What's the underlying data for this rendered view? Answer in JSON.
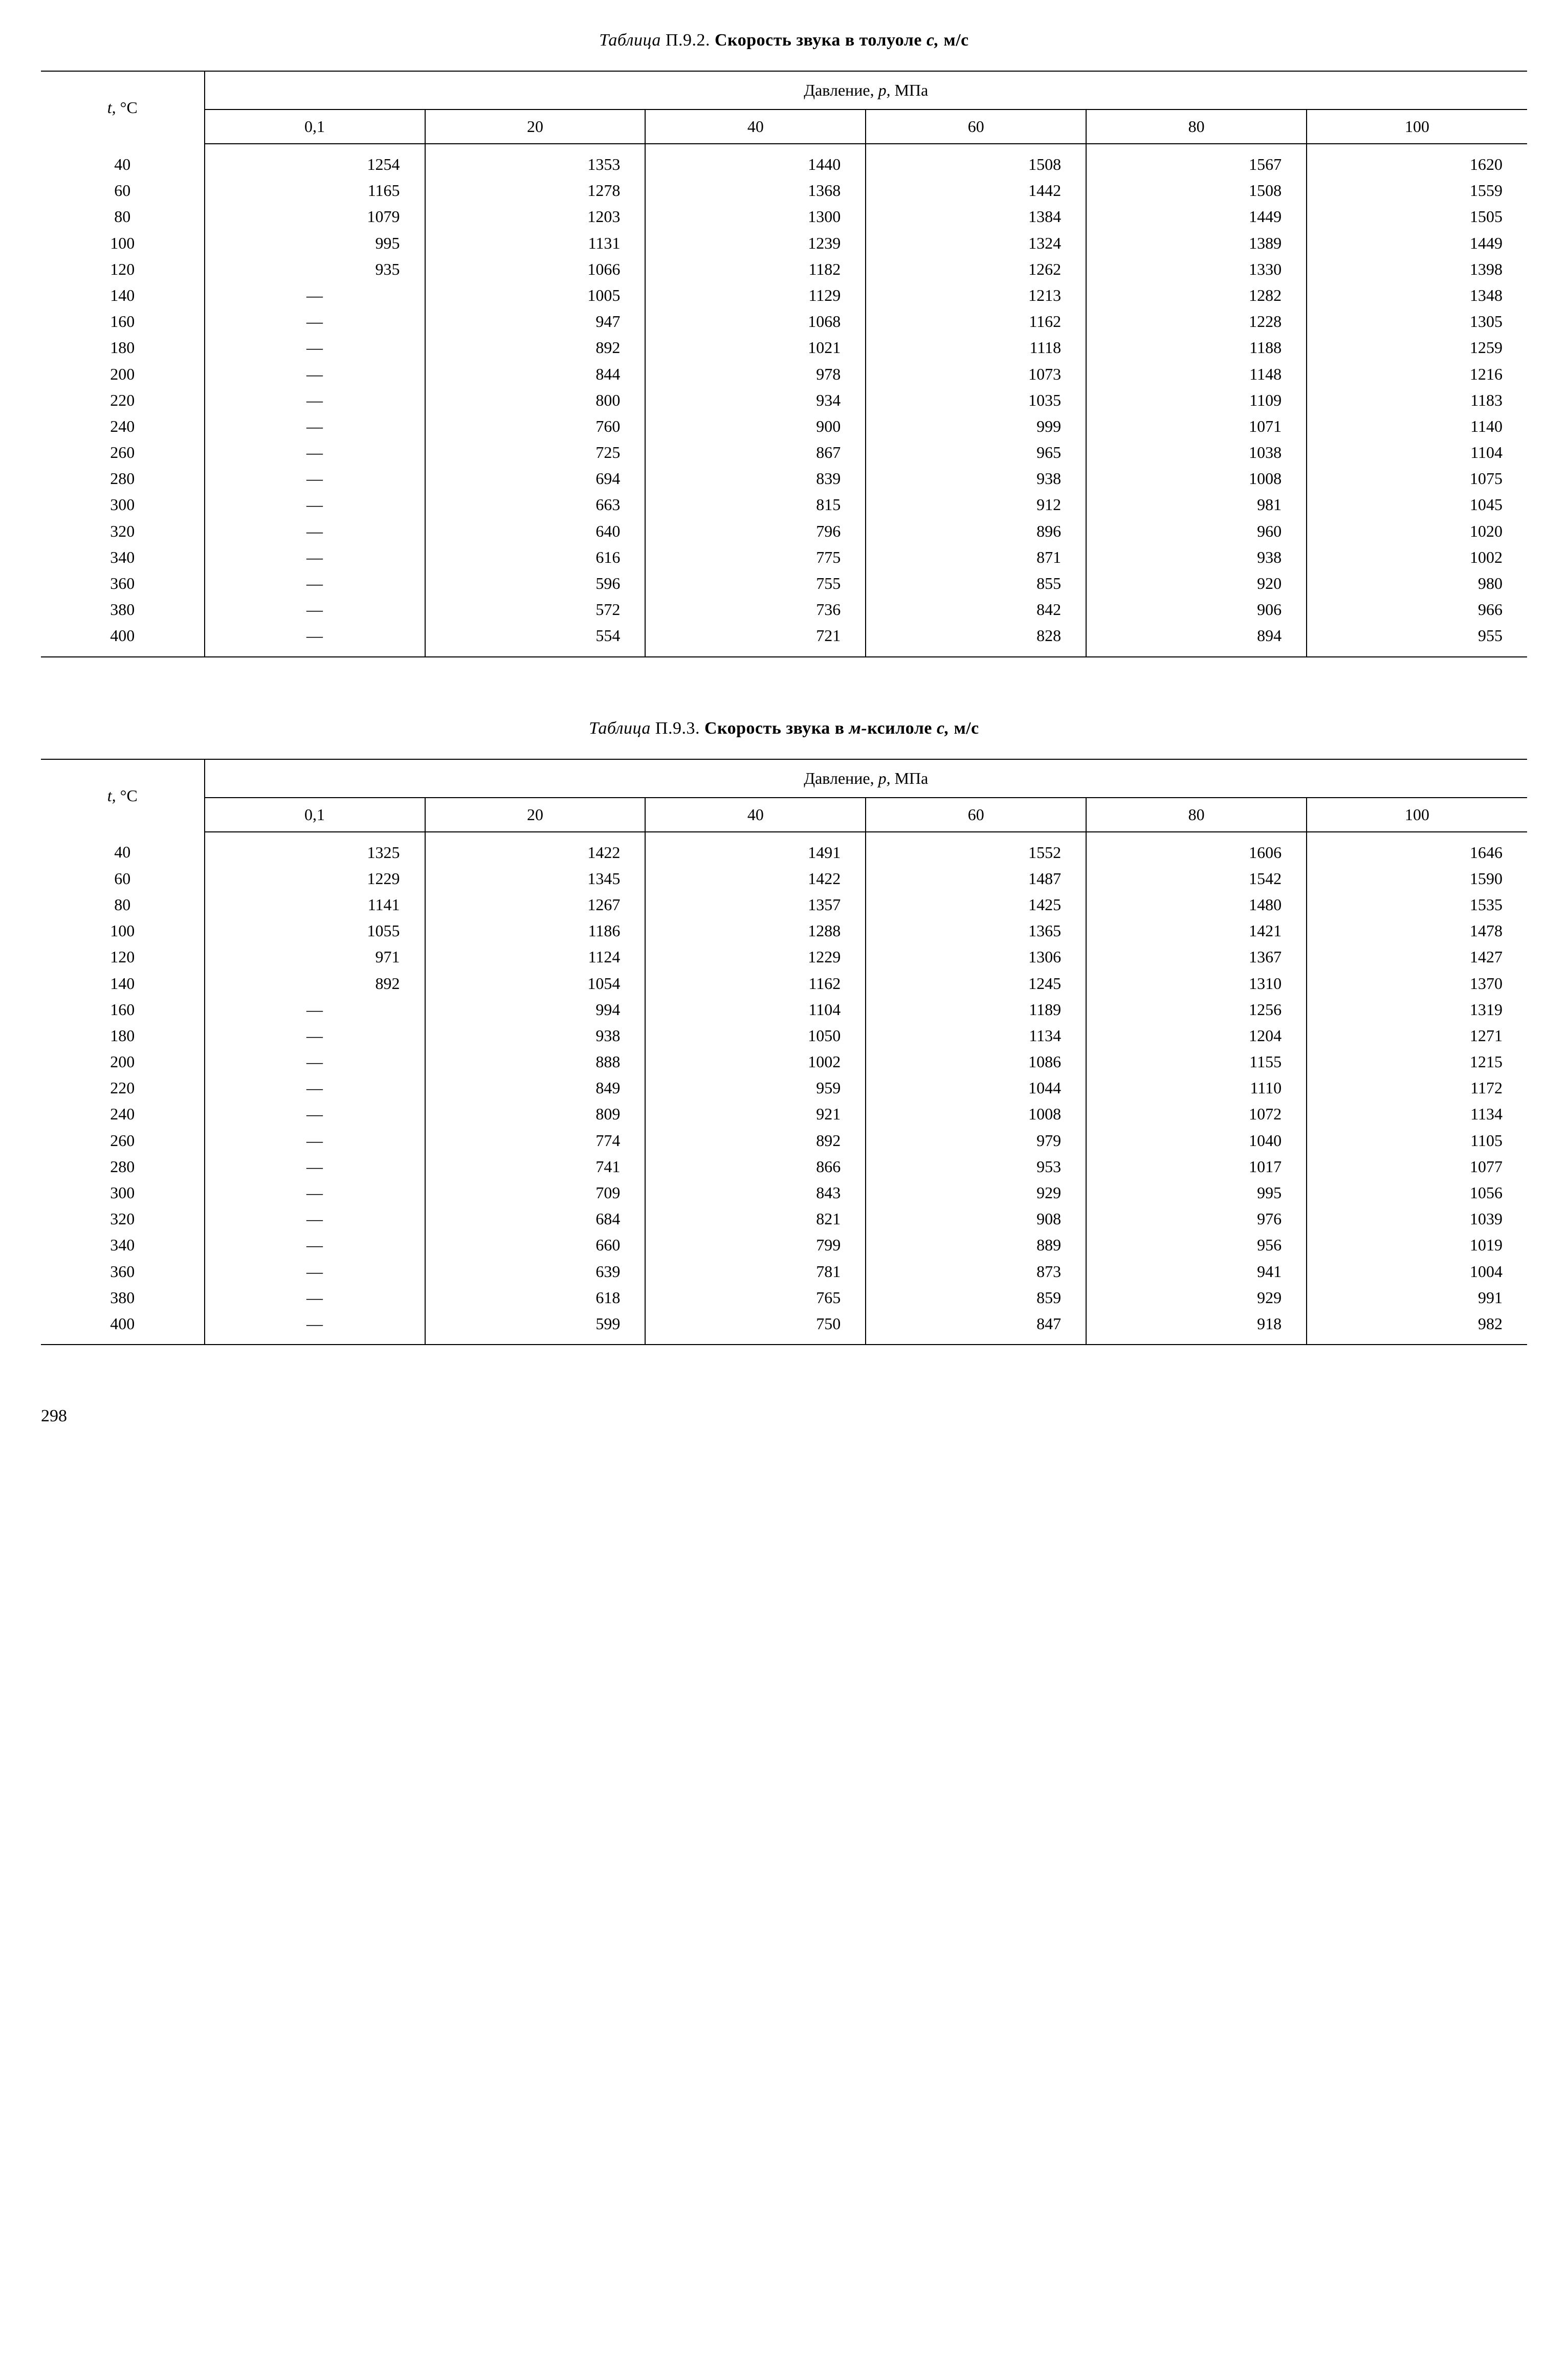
{
  "page_number": "298",
  "table1": {
    "title_parts": {
      "label": "Таблица",
      "number": "П.9.2.",
      "text": "Скорость звука в толуоле",
      "var": "с,",
      "units": "м/с"
    },
    "row_header": {
      "var": "t,",
      "unit": "°С"
    },
    "pressure_header": {
      "label": "Давление,",
      "var": "p,",
      "unit": "МПа"
    },
    "columns": [
      "0,1",
      "20",
      "40",
      "60",
      "80",
      "100"
    ],
    "temps": [
      "40",
      "60",
      "80",
      "100",
      "120",
      "140",
      "160",
      "180",
      "200",
      "220",
      "240",
      "260",
      "280",
      "300",
      "320",
      "340",
      "360",
      "380",
      "400"
    ],
    "rows": [
      [
        "1254",
        "1353",
        "1440",
        "1508",
        "1567",
        "1620"
      ],
      [
        "1165",
        "1278",
        "1368",
        "1442",
        "1508",
        "1559"
      ],
      [
        "1079",
        "1203",
        "1300",
        "1384",
        "1449",
        "1505"
      ],
      [
        "995",
        "1131",
        "1239",
        "1324",
        "1389",
        "1449"
      ],
      [
        "935",
        "1066",
        "1182",
        "1262",
        "1330",
        "1398"
      ],
      [
        "—",
        "1005",
        "1129",
        "1213",
        "1282",
        "1348"
      ],
      [
        "—",
        "947",
        "1068",
        "1162",
        "1228",
        "1305"
      ],
      [
        "—",
        "892",
        "1021",
        "1118",
        "1188",
        "1259"
      ],
      [
        "—",
        "844",
        "978",
        "1073",
        "1148",
        "1216"
      ],
      [
        "—",
        "800",
        "934",
        "1035",
        "1109",
        "1183"
      ],
      [
        "—",
        "760",
        "900",
        "999",
        "1071",
        "1140"
      ],
      [
        "—",
        "725",
        "867",
        "965",
        "1038",
        "1104"
      ],
      [
        "—",
        "694",
        "839",
        "938",
        "1008",
        "1075"
      ],
      [
        "—",
        "663",
        "815",
        "912",
        "981",
        "1045"
      ],
      [
        "—",
        "640",
        "796",
        "896",
        "960",
        "1020"
      ],
      [
        "—",
        "616",
        "775",
        "871",
        "938",
        "1002"
      ],
      [
        "—",
        "596",
        "755",
        "855",
        "920",
        "980"
      ],
      [
        "—",
        "572",
        "736",
        "842",
        "906",
        "966"
      ],
      [
        "—",
        "554",
        "721",
        "828",
        "894",
        "955"
      ]
    ]
  },
  "table2": {
    "title_parts": {
      "label": "Таблица",
      "number": "П.9.3.",
      "text_before": "Скорость звука в",
      "text_italic": "м-",
      "text_after": "ксилоле",
      "var": "с,",
      "units": "м/с"
    },
    "row_header": {
      "var": "t,",
      "unit": "°С"
    },
    "pressure_header": {
      "label": "Давление,",
      "var": "p,",
      "unit": "МПа"
    },
    "columns": [
      "0,1",
      "20",
      "40",
      "60",
      "80",
      "100"
    ],
    "temps": [
      "40",
      "60",
      "80",
      "100",
      "120",
      "140",
      "160",
      "180",
      "200",
      "220",
      "240",
      "260",
      "280",
      "300",
      "320",
      "340",
      "360",
      "380",
      "400"
    ],
    "rows": [
      [
        "1325",
        "1422",
        "1491",
        "1552",
        "1606",
        "1646"
      ],
      [
        "1229",
        "1345",
        "1422",
        "1487",
        "1542",
        "1590"
      ],
      [
        "1141",
        "1267",
        "1357",
        "1425",
        "1480",
        "1535"
      ],
      [
        "1055",
        "1186",
        "1288",
        "1365",
        "1421",
        "1478"
      ],
      [
        "971",
        "1124",
        "1229",
        "1306",
        "1367",
        "1427"
      ],
      [
        "892",
        "1054",
        "1162",
        "1245",
        "1310",
        "1370"
      ],
      [
        "—",
        "994",
        "1104",
        "1189",
        "1256",
        "1319"
      ],
      [
        "—",
        "938",
        "1050",
        "1134",
        "1204",
        "1271"
      ],
      [
        "—",
        "888",
        "1002",
        "1086",
        "1155",
        "1215"
      ],
      [
        "—",
        "849",
        "959",
        "1044",
        "1110",
        "1172"
      ],
      [
        "—",
        "809",
        "921",
        "1008",
        "1072",
        "1134"
      ],
      [
        "—",
        "774",
        "892",
        "979",
        "1040",
        "1105"
      ],
      [
        "—",
        "741",
        "866",
        "953",
        "1017",
        "1077"
      ],
      [
        "—",
        "709",
        "843",
        "929",
        "995",
        "1056"
      ],
      [
        "—",
        "684",
        "821",
        "908",
        "976",
        "1039"
      ],
      [
        "—",
        "660",
        "799",
        "889",
        "956",
        "1019"
      ],
      [
        "—",
        "639",
        "781",
        "873",
        "941",
        "1004"
      ],
      [
        "—",
        "618",
        "765",
        "859",
        "929",
        "991"
      ],
      [
        "—",
        "599",
        "750",
        "847",
        "918",
        "982"
      ]
    ]
  }
}
